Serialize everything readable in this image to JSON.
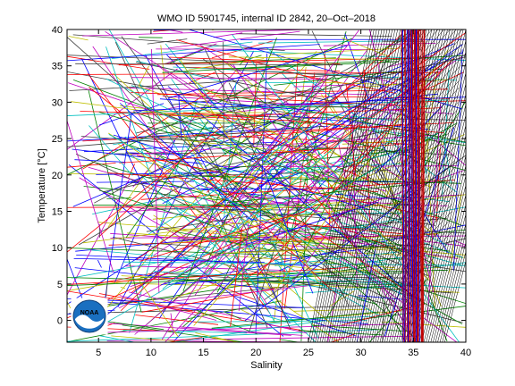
{
  "chart_data": {
    "type": "scatter",
    "title": "WMO ID 5901745, internal ID 2842, 20–Oct–2018",
    "xlabel": "Salinity",
    "ylabel": "Temperature [°C]",
    "xlim": [
      2,
      40
    ],
    "ylim": [
      -3,
      40
    ],
    "xticks": [
      5,
      10,
      15,
      20,
      25,
      30,
      35,
      40
    ],
    "yticks": [
      0,
      5,
      10,
      15,
      20,
      25,
      30,
      35,
      40
    ],
    "grid": false,
    "legend": "none",
    "series_colors": [
      "#0000ff",
      "#008000",
      "#ff0000",
      "#00bfbf",
      "#bf00bf",
      "#bfbf00",
      "#404040"
    ],
    "highlight_color": "#0000ff",
    "reference_color": "#000000",
    "density_isoline_count": 60,
    "densest_band_salinity": [
      34,
      36
    ],
    "logo": "NOAA"
  }
}
